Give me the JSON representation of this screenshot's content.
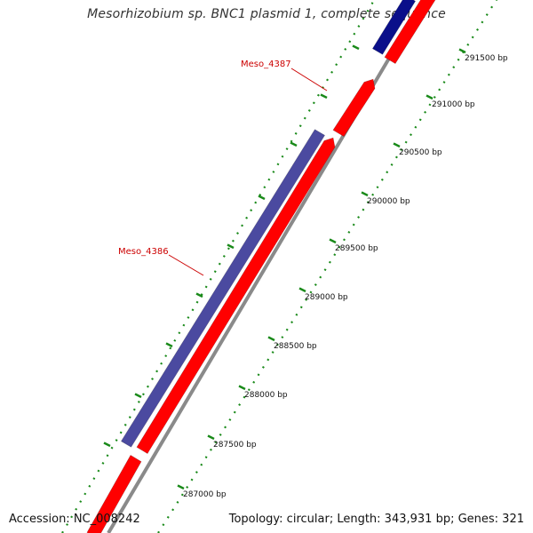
{
  "title": "Mesorhizobium sp. BNC1 plasmid 1, complete sequence",
  "footer": {
    "accession": "Accession: NC_008242",
    "summary": "Topology: circular; Length: 343,931 bp; Genes: 321"
  },
  "colors": {
    "forward_gene": "#ff0000",
    "reverse_gene": "#4b4aa0",
    "reverse_gene_dark": "#0a0f8a",
    "backbone": "#8a8a8a",
    "tick": "#1a8a1a",
    "label": "#cc0000"
  },
  "ticks": [
    {
      "label": "287000 bp"
    },
    {
      "label": "287500 bp"
    },
    {
      "label": "288000 bp"
    },
    {
      "label": "288500 bp"
    },
    {
      "label": "289000 bp"
    },
    {
      "label": "289500 bp"
    },
    {
      "label": "290000 bp"
    },
    {
      "label": "290500 bp"
    },
    {
      "label": "291000 bp"
    },
    {
      "label": "291500 bp"
    }
  ],
  "genes": [
    {
      "name": "Meso_4386",
      "strand": "reverse"
    },
    {
      "name": "Meso_4387",
      "strand": "forward"
    }
  ]
}
